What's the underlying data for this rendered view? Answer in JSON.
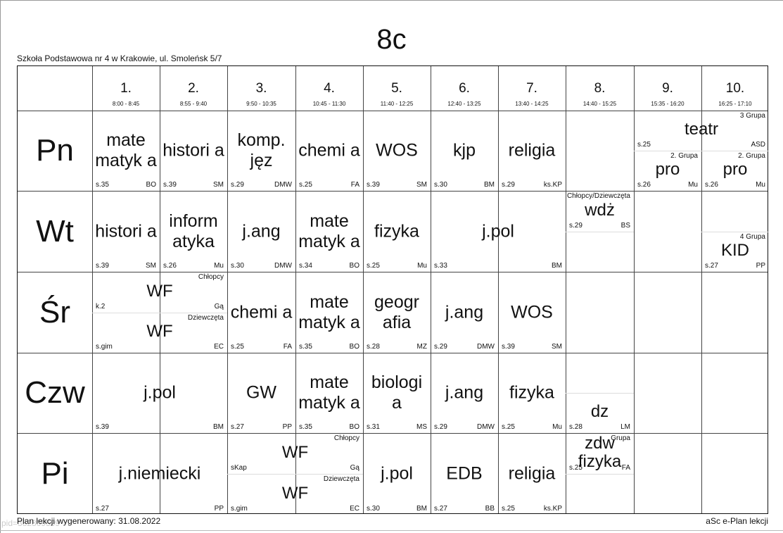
{
  "class_title": "8c",
  "school_name": "Szkoła Podstawowa nr 4 w Krakowie, ul. Smoleńsk 5/7",
  "footer": {
    "generated": "Plan lekcji wygenerowany: 31.08.2022",
    "software": "aSc e-Plan lekcji",
    "pid": "pid=382809599"
  },
  "periods": [
    {
      "num": "1.",
      "time": "8:00 - 8:45"
    },
    {
      "num": "2.",
      "time": "8:55 - 9:40"
    },
    {
      "num": "3.",
      "time": "9:50 - 10:35"
    },
    {
      "num": "4.",
      "time": "10:45 - 11:30"
    },
    {
      "num": "5.",
      "time": "11:40 - 12:25"
    },
    {
      "num": "6.",
      "time": "12:40 - 13:25"
    },
    {
      "num": "7.",
      "time": "13:40 - 14:25"
    },
    {
      "num": "8.",
      "time": "14:40 - 15:25"
    },
    {
      "num": "9.",
      "time": "15:35 - 16:20"
    },
    {
      "num": "10.",
      "time": "16:25 - 17:10"
    }
  ],
  "days": [
    "Pn",
    "Wt",
    "Śr",
    "Czw",
    "Pi"
  ],
  "lessons": [
    {
      "subject": "mate matyk a",
      "room": "s.35",
      "teacher": "BO",
      "group": ""
    },
    {
      "subject": "histori a",
      "room": "s.39",
      "teacher": "SM",
      "group": ""
    },
    {
      "subject": "komp. jęz",
      "room": "s.29",
      "teacher": "DMW",
      "group": ""
    },
    {
      "subject": "chemi a",
      "room": "s.25",
      "teacher": "FA",
      "group": ""
    },
    {
      "subject": "WOS",
      "room": "s.39",
      "teacher": "SM",
      "group": ""
    },
    {
      "subject": "kjp",
      "room": "s.30",
      "teacher": "BM",
      "group": ""
    },
    {
      "subject": "religia",
      "room": "s.29",
      "teacher": "ks.KP",
      "group": ""
    },
    {
      "subject": "teatr",
      "room": "s.25",
      "teacher": "ASD",
      "group": "3 Grupa"
    },
    {
      "subject": "pro",
      "room": "s.26",
      "teacher": "Mu",
      "group": "2. Grupa"
    },
    {
      "subject": "pro",
      "room": "s.26",
      "teacher": "Mu",
      "group": "2. Grupa"
    },
    {
      "subject": "histori a",
      "room": "s.39",
      "teacher": "SM",
      "group": ""
    },
    {
      "subject": "inform atyka",
      "room": "s.26",
      "teacher": "Mu",
      "group": ""
    },
    {
      "subject": "j.ang",
      "room": "s.30",
      "teacher": "DMW",
      "group": ""
    },
    {
      "subject": "mate matyk a",
      "room": "s.34",
      "teacher": "BO",
      "group": ""
    },
    {
      "subject": "fizyka",
      "room": "s.25",
      "teacher": "Mu",
      "group": ""
    },
    {
      "subject": "j.pol",
      "room": "s.33",
      "teacher": "BM",
      "group": ""
    },
    {
      "subject": "wdż",
      "room": "s.29",
      "teacher": "BS",
      "group": "Chłopcy/Dziewczęta"
    },
    {
      "subject": "KID",
      "room": "s.27",
      "teacher": "PP",
      "group": "4 Grupa"
    },
    {
      "subject": "WF",
      "room": "k.2",
      "teacher": "Gą",
      "group": "Chłopcy"
    },
    {
      "subject": "WF",
      "room": "s.gim",
      "teacher": "EC",
      "group": "Dziewczęta"
    },
    {
      "subject": "chemi a",
      "room": "s.25",
      "teacher": "FA",
      "group": ""
    },
    {
      "subject": "mate matyk a",
      "room": "s.35",
      "teacher": "BO",
      "group": ""
    },
    {
      "subject": "geogr afia",
      "room": "s.28",
      "teacher": "MZ",
      "group": ""
    },
    {
      "subject": "j.ang",
      "room": "s.29",
      "teacher": "DMW",
      "group": ""
    },
    {
      "subject": "WOS",
      "room": "s.39",
      "teacher": "SM",
      "group": ""
    },
    {
      "subject": "j.pol",
      "room": "s.39",
      "teacher": "BM",
      "group": ""
    },
    {
      "subject": "GW",
      "room": "s.27",
      "teacher": "PP",
      "group": ""
    },
    {
      "subject": "mate matyk a",
      "room": "s.35",
      "teacher": "BO",
      "group": ""
    },
    {
      "subject": "biologi a",
      "room": "s.31",
      "teacher": "MS",
      "group": ""
    },
    {
      "subject": "j.ang",
      "room": "s.29",
      "teacher": "DMW",
      "group": ""
    },
    {
      "subject": "fizyka",
      "room": "s.25",
      "teacher": "Mu",
      "group": ""
    },
    {
      "subject": "dz",
      "room": "s.28",
      "teacher": "LM",
      "group": ""
    },
    {
      "subject": "j.niemiecki",
      "room": "s.27",
      "teacher": "PP",
      "group": ""
    },
    {
      "subject": "WF",
      "room": "sKap",
      "teacher": "Gą",
      "group": "Chłopcy"
    },
    {
      "subject": "WF",
      "room": "s.gim",
      "teacher": "EC",
      "group": "Dziewczęta"
    },
    {
      "subject": "j.pol",
      "room": "s.30",
      "teacher": "BM",
      "group": ""
    },
    {
      "subject": "EDB",
      "room": "s.27",
      "teacher": "BB",
      "group": ""
    },
    {
      "subject": "religia",
      "room": "s.25",
      "teacher": "ks.KP",
      "group": ""
    },
    {
      "subject": "zdw fizyka",
      "room": "s.25",
      "teacher": "FA",
      "group": "Grupa"
    }
  ]
}
